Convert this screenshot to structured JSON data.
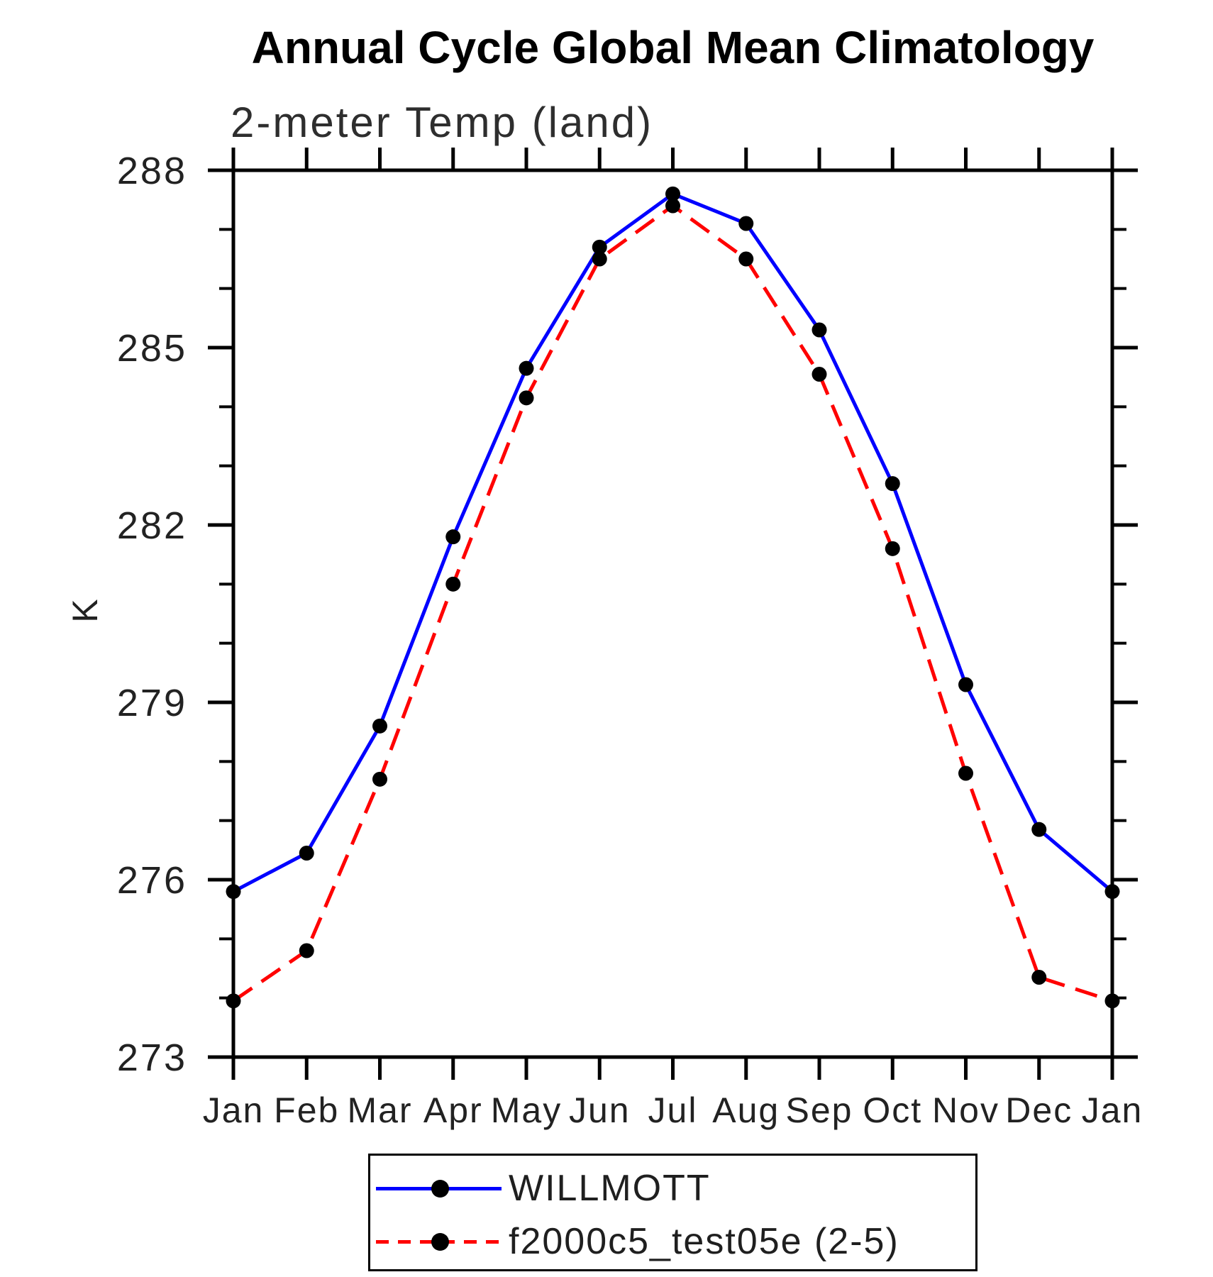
{
  "header": {
    "title": "Annual Cycle Global Mean Climatology",
    "subtitle": "2-meter Temp (land)"
  },
  "chart_data": {
    "type": "line",
    "title": "Annual Cycle Global Mean Climatology",
    "subtitle": "2-meter Temp (land)",
    "xlabel": "",
    "ylabel": "K",
    "ylim": [
      273,
      288
    ],
    "ymajor_step": 3,
    "yminor_step": 1,
    "ytick_labels": [
      "273",
      "276",
      "279",
      "282",
      "285",
      "288"
    ],
    "grid": false,
    "legend_position": "bottom",
    "categories": [
      "Jan",
      "Feb",
      "Mar",
      "Apr",
      "May",
      "Jun",
      "Jul",
      "Aug",
      "Sep",
      "Oct",
      "Nov",
      "Dec",
      "Jan"
    ],
    "series": [
      {
        "name": "WILLMOTT",
        "color": "#0000ff",
        "style": "solid",
        "marker_color": "#000000",
        "values": [
          275.8,
          276.45,
          278.6,
          281.8,
          284.65,
          286.7,
          287.6,
          287.1,
          285.3,
          282.7,
          279.3,
          276.85,
          275.8
        ]
      },
      {
        "name": "f2000c5_test05e (2-5)",
        "color": "#ff0000",
        "style": "dashed",
        "marker_color": "#000000",
        "values": [
          273.95,
          274.8,
          277.7,
          281.0,
          284.15,
          286.5,
          287.4,
          286.5,
          284.55,
          281.6,
          277.8,
          274.35,
          273.95
        ]
      }
    ]
  }
}
